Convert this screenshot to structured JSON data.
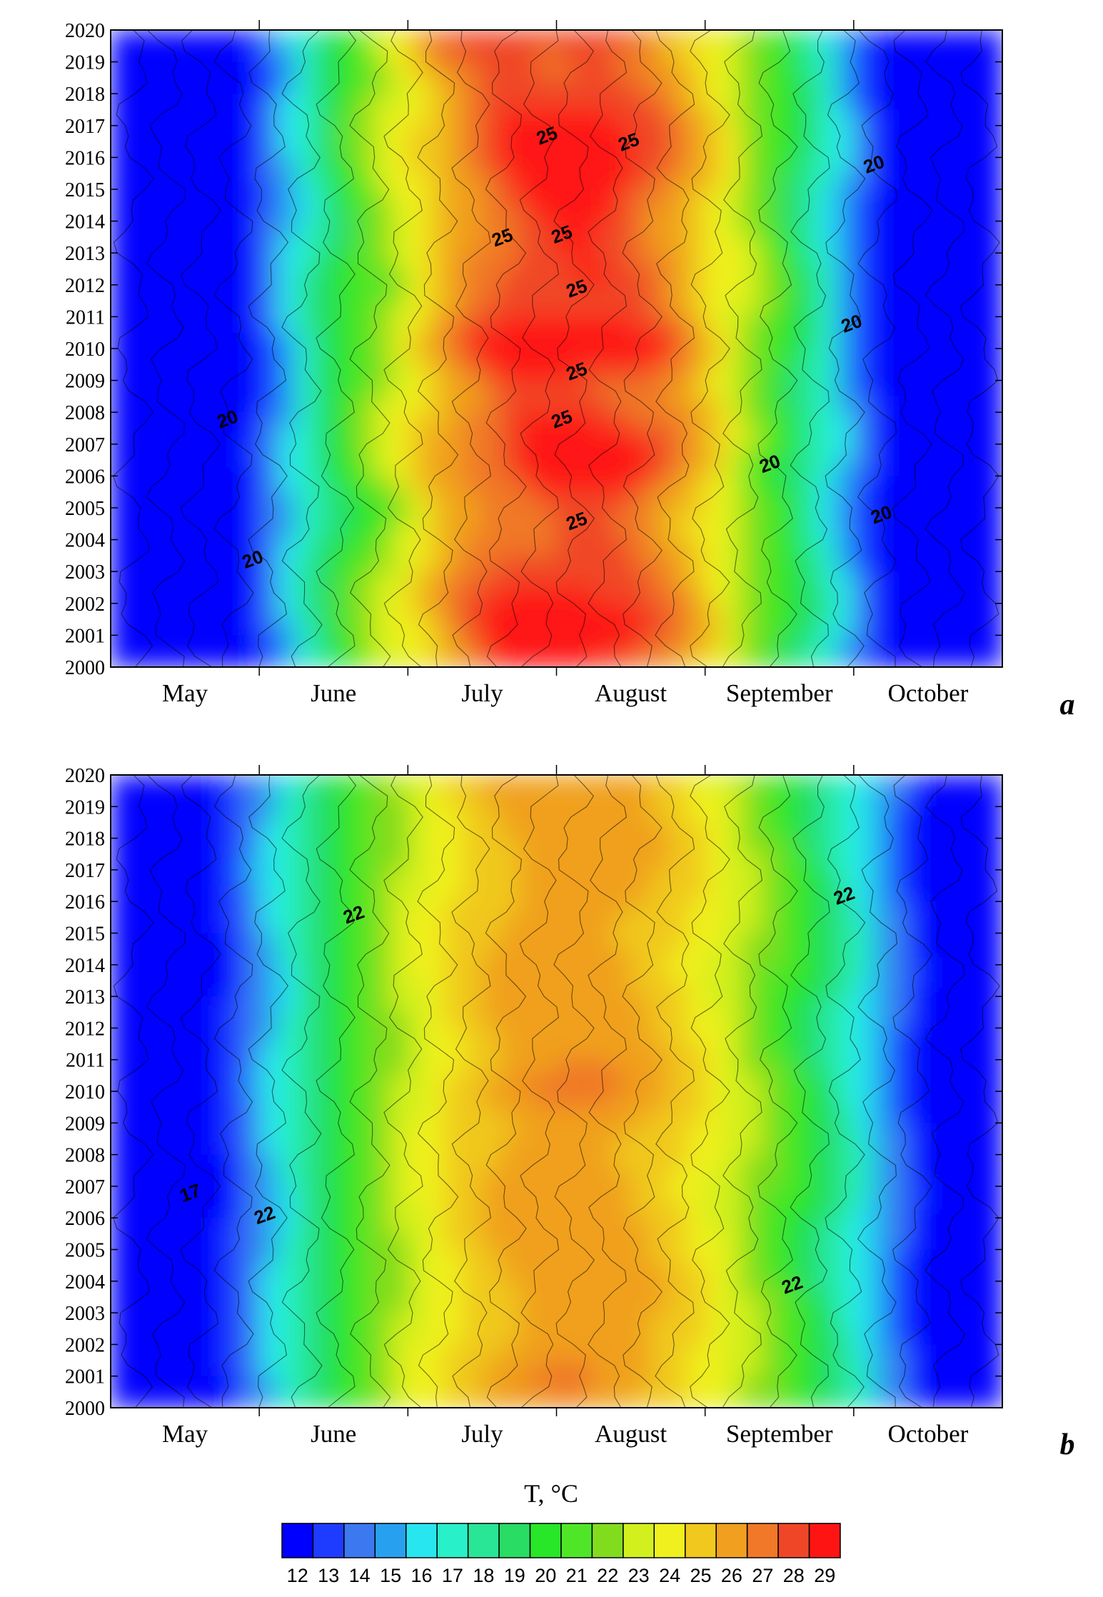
{
  "figure": {
    "colorbar": {
      "title": "T, °C",
      "ticks": [
        "12",
        "13",
        "14",
        "15",
        "16",
        "17",
        "18",
        "19",
        "20",
        "21",
        "22",
        "23",
        "24",
        "25",
        "26",
        "27",
        "28",
        "29"
      ],
      "colors": [
        "#0000ff",
        "#1e3cff",
        "#3c78f0",
        "#28a0f0",
        "#28e6f0",
        "#28f0c8",
        "#28e696",
        "#28dc64",
        "#28e628",
        "#50e628",
        "#82dc1e",
        "#d2f01e",
        "#f0f01e",
        "#f0c81e",
        "#f0a01e",
        "#f07828",
        "#f04628",
        "#ff1414"
      ]
    }
  },
  "chart_data": [
    {
      "type": "heatmap",
      "panel_label": "a",
      "x_categories": [
        "May",
        "June",
        "July",
        "August",
        "September",
        "October"
      ],
      "y_ticks": [
        "2000",
        "2001",
        "2002",
        "2003",
        "2004",
        "2005",
        "2006",
        "2007",
        "2008",
        "2009",
        "2010",
        "2011",
        "2012",
        "2013",
        "2014",
        "2015",
        "2016",
        "2017",
        "2018",
        "2019",
        "2020"
      ],
      "ylim": [
        2000,
        2020
      ],
      "contour_labels": [
        {
          "text": "25",
          "month": 2.95,
          "year": 2016.5
        },
        {
          "text": "25",
          "month": 3.5,
          "year": 2016.3
        },
        {
          "text": "25",
          "month": 2.65,
          "year": 2013.3
        },
        {
          "text": "25",
          "month": 3.05,
          "year": 2013.4
        },
        {
          "text": "25",
          "month": 3.15,
          "year": 2011.7
        },
        {
          "text": "25",
          "month": 3.15,
          "year": 2009.1
        },
        {
          "text": "25",
          "month": 3.05,
          "year": 2007.6
        },
        {
          "text": "25",
          "month": 3.15,
          "year": 2004.4
        },
        {
          "text": "20",
          "month": 5.15,
          "year": 2015.6
        },
        {
          "text": "20",
          "month": 5.0,
          "year": 2010.6
        },
        {
          "text": "20",
          "month": 0.8,
          "year": 2007.6
        },
        {
          "text": "20",
          "month": 4.45,
          "year": 2006.2
        },
        {
          "text": "20",
          "month": 5.2,
          "year": 2004.6
        },
        {
          "text": "20",
          "month": 0.97,
          "year": 2003.2
        }
      ],
      "description": "Smoothed temperature field, hot core July–August with maximum near 29 °C in 2010 and 2001, cooler 14–17 °C in early May."
    },
    {
      "type": "heatmap",
      "panel_label": "b",
      "x_categories": [
        "May",
        "June",
        "July",
        "August",
        "September",
        "October"
      ],
      "y_ticks": [
        "2000",
        "2001",
        "2002",
        "2003",
        "2004",
        "2005",
        "2006",
        "2007",
        "2008",
        "2009",
        "2010",
        "2011",
        "2012",
        "2013",
        "2014",
        "2015",
        "2016",
        "2017",
        "2018",
        "2019",
        "2020"
      ],
      "ylim": [
        2000,
        2020
      ],
      "contour_labels": [
        {
          "text": "22",
          "month": 1.65,
          "year": 2015.4
        },
        {
          "text": "22",
          "month": 1.05,
          "year": 2005.9
        },
        {
          "text": "22",
          "month": 4.6,
          "year": 2003.7
        },
        {
          "text": "22",
          "month": 4.95,
          "year": 2016.0
        },
        {
          "text": "17",
          "month": 0.55,
          "year": 2006.6
        }
      ],
      "description": "Climatological temperature field, core 25–27 °C in late July–August, 14–16 °C in May."
    }
  ]
}
